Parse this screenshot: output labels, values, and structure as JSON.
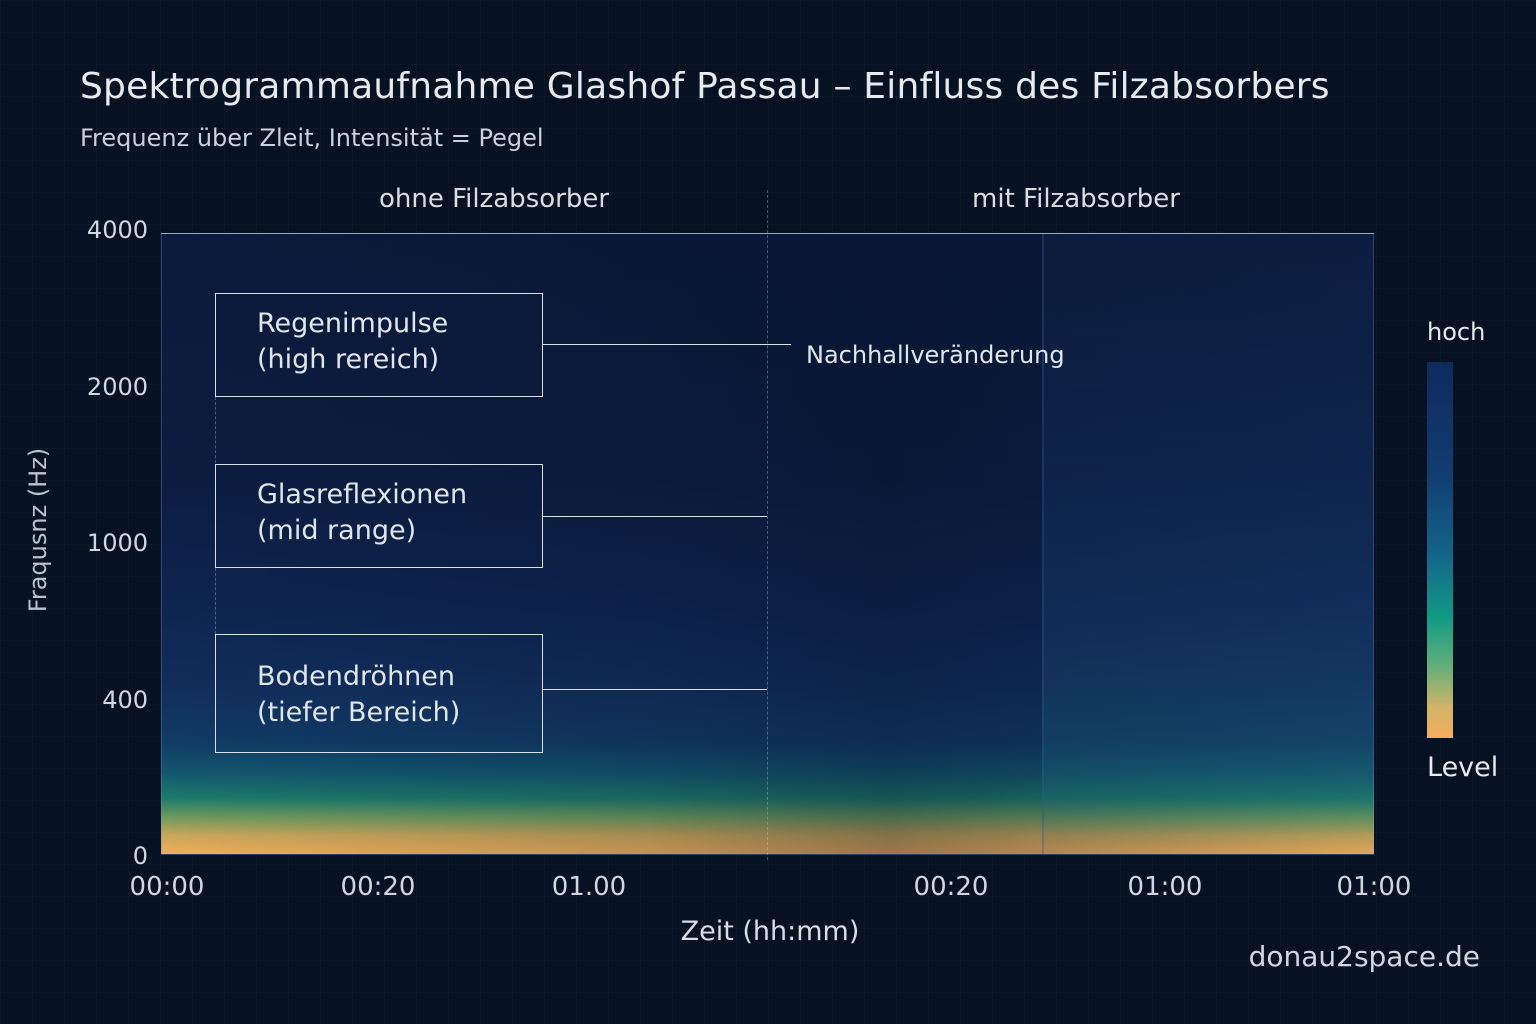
{
  "chart_data": {
    "type": "heatmap",
    "title": "Spektrogrammaufnahme Glashof Passau – Einfluss des Filzabsorbers",
    "subtitle": "Frequenz über Zleit, Intensität = Pegel",
    "xlabel": "Zeit (hh:mm)",
    "ylabel": "Fraqusnz (Hz)",
    "y_ticks": [
      "4000",
      "2000",
      "1000",
      "400",
      "0"
    ],
    "x_ticks": [
      "00:00",
      "00:20",
      "01.00",
      "00:20",
      "01:00",
      "01:00"
    ],
    "sections": [
      "ohne Filzabsorber",
      "mit Filzabsorber"
    ],
    "annotations": [
      {
        "line1": "Regenimpulse",
        "line2": "(high rereich)"
      },
      {
        "line1": "Glasreflexionen",
        "line2": "(mid range)"
      },
      {
        "line1": "Bodendröhnen",
        "line2": "(tiefer Bereich)"
      }
    ],
    "annotation_note": "Nachhallveränderung",
    "colorbar": {
      "top_label": "hoch",
      "bottom_label": "Level",
      "colors": [
        "#0e2a5e",
        "#14668a",
        "#129a84",
        "#5cae7a",
        "#f6ad5d"
      ]
    },
    "grid": false
  },
  "footer": {
    "credit": "donau2space.de"
  }
}
